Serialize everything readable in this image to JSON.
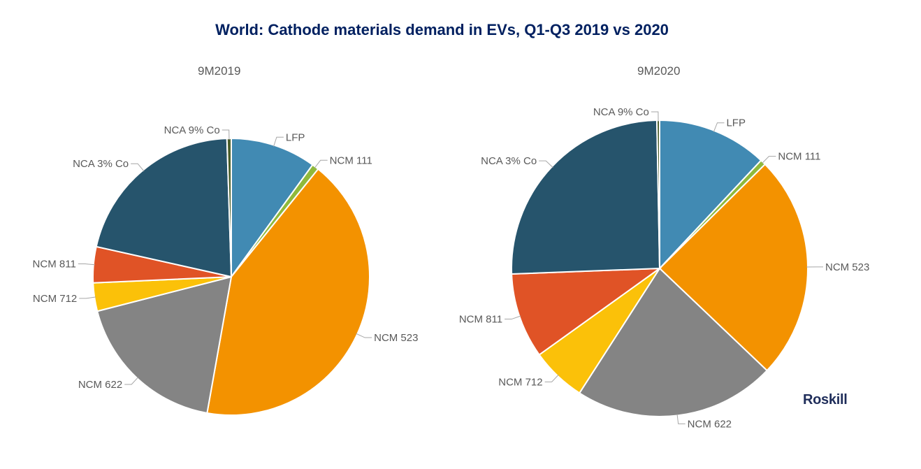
{
  "chart_data": {
    "type": "pie",
    "title": "World: Cathode materials demand in EVs, Q1-Q3 2019 vs 2020",
    "charts": [
      {
        "name": "9M2019",
        "slices": [
          {
            "label": "LFP",
            "value": 10.0,
            "color": "#418ab3"
          },
          {
            "label": "NCM 111",
            "value": 0.8,
            "color": "#8fb93b"
          },
          {
            "label": "NCM 523",
            "value": 42.0,
            "color": "#f39200"
          },
          {
            "label": "NCM 622",
            "value": 18.2,
            "color": "#848484"
          },
          {
            "label": "NCM 712",
            "value": 3.3,
            "color": "#fbc109"
          },
          {
            "label": "NCM 811",
            "value": 4.2,
            "color": "#e05326"
          },
          {
            "label": "NCA 3% Co",
            "value": 21.0,
            "color": "#26546c"
          },
          {
            "label": "NCA 9% Co",
            "value": 0.5,
            "color": "#4a5e2a"
          }
        ]
      },
      {
        "name": "9M2020",
        "slices": [
          {
            "label": "LFP",
            "value": 12.0,
            "color": "#418ab3"
          },
          {
            "label": "NCM 111",
            "value": 0.6,
            "color": "#8fb93b"
          },
          {
            "label": "NCM 523",
            "value": 24.5,
            "color": "#f39200"
          },
          {
            "label": "NCM 622",
            "value": 22.0,
            "color": "#848484"
          },
          {
            "label": "NCM 712",
            "value": 6.0,
            "color": "#fbc109"
          },
          {
            "label": "NCM 811",
            "value": 9.3,
            "color": "#e05326"
          },
          {
            "label": "NCA 3% Co",
            "value": 25.3,
            "color": "#26546c"
          },
          {
            "label": "NCA 9% Co",
            "value": 0.3,
            "color": "#4a5e2a"
          }
        ]
      }
    ]
  },
  "logo": "Roskill"
}
